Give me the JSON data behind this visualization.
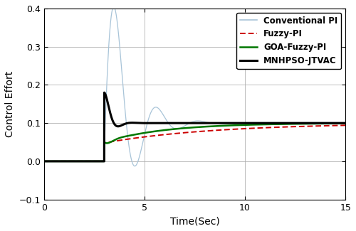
{
  "xlabel": "Time(Sec)",
  "ylabel": "Control Effort",
  "xlim": [
    0,
    15
  ],
  "ylim": [
    -0.1,
    0.4
  ],
  "xticks": [
    0,
    5,
    10,
    15
  ],
  "yticks": [
    -0.1,
    0.0,
    0.1,
    0.2,
    0.3,
    0.4
  ],
  "step_time": 3.0,
  "steady_state": 0.1,
  "colors": {
    "conventional_pi": "#A8C4D8",
    "fuzzy_pi": "#CC0000",
    "goa_fuzzy_pi": "#007700",
    "mnhpso": "#000000"
  },
  "legend": [
    "Conventional PI",
    "Fuzzy-PI",
    "GOA-Fuzzy-PI",
    "MNHPSO-JTVAC"
  ],
  "figsize": [
    5.0,
    3.25
  ],
  "dpi": 100,
  "grid_color": "#AAAAAA",
  "bg_color": "#FFFFFF"
}
